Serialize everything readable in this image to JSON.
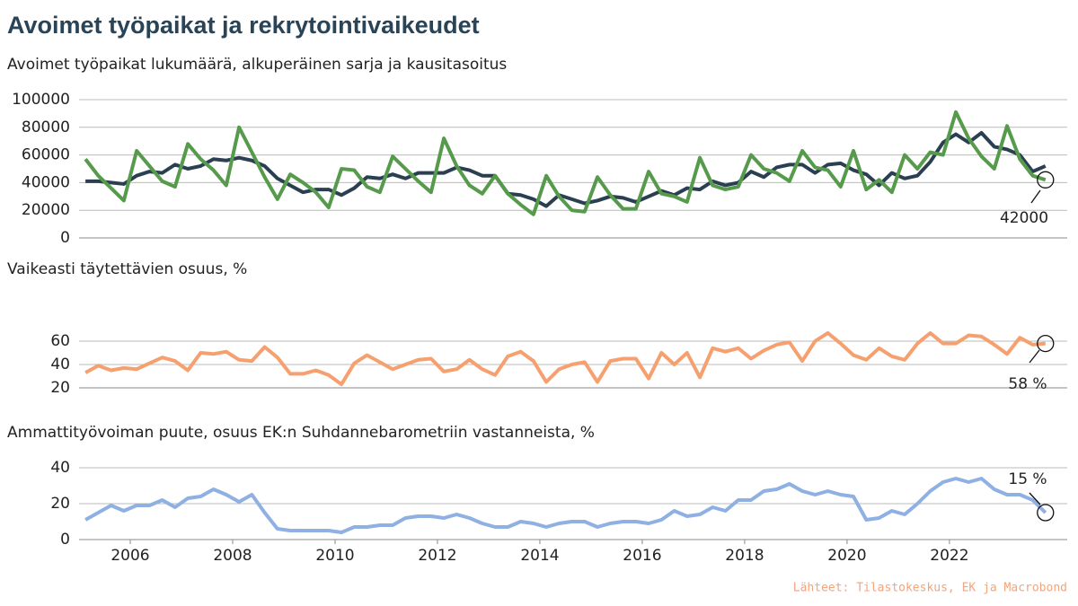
{
  "title": "Avoimet työpaikat ja rekrytointivaikeudet",
  "source": "Lähteet: Tilastokeskus, EK ja Macrobond",
  "chart_data": [
    {
      "type": "line",
      "subtitle": "Avoimet työpaikat lukumäärä, alkuperäinen sarja ja kausitasoitus",
      "x": [
        2005.125,
        2005.375,
        2005.625,
        2005.875,
        2006.125,
        2006.375,
        2006.625,
        2006.875,
        2007.125,
        2007.375,
        2007.625,
        2007.875,
        2008.125,
        2008.375,
        2008.625,
        2008.875,
        2009.125,
        2009.375,
        2009.625,
        2009.875,
        2010.125,
        2010.375,
        2010.625,
        2010.875,
        2011.125,
        2011.375,
        2011.625,
        2011.875,
        2012.125,
        2012.375,
        2012.625,
        2012.875,
        2013.125,
        2013.375,
        2013.625,
        2013.875,
        2014.125,
        2014.375,
        2014.625,
        2014.875,
        2015.125,
        2015.375,
        2015.625,
        2015.875,
        2016.125,
        2016.375,
        2016.625,
        2016.875,
        2017.125,
        2017.375,
        2017.625,
        2017.875,
        2018.125,
        2018.375,
        2018.625,
        2018.875,
        2019.125,
        2019.375,
        2019.625,
        2019.875,
        2020.125,
        2020.375,
        2020.625,
        2020.875,
        2021.125,
        2021.375,
        2021.625,
        2021.875,
        2022.125,
        2022.375,
        2022.625,
        2022.875,
        2023.125,
        2023.375,
        2023.625,
        2023.875
      ],
      "series": [
        {
          "color": "#2b3f52",
          "values": [
            41000,
            41000,
            40000,
            39000,
            45000,
            48000,
            47000,
            53000,
            50000,
            52000,
            57000,
            56000,
            58000,
            56000,
            52000,
            43000,
            38000,
            33000,
            35000,
            35000,
            31000,
            36000,
            44000,
            43000,
            46000,
            43000,
            47000,
            47000,
            47000,
            51000,
            49000,
            45000,
            45000,
            32000,
            31000,
            28000,
            23000,
            31000,
            28000,
            25000,
            27000,
            30000,
            29000,
            26000,
            30000,
            34000,
            31000,
            36000,
            35000,
            41000,
            38000,
            40000,
            48000,
            44000,
            51000,
            53000,
            53000,
            47000,
            53000,
            54000,
            49000,
            46000,
            38000,
            47000,
            43000,
            45000,
            55000,
            69000,
            75000,
            69000,
            76000,
            66000,
            64000,
            60000,
            48000,
            52000
          ]
        },
        {
          "color": "#569a4b",
          "values": [
            57000,
            45000,
            36000,
            27000,
            63000,
            52000,
            41000,
            37000,
            68000,
            57000,
            49000,
            38000,
            80000,
            62000,
            44000,
            28000,
            46000,
            40000,
            33000,
            22000,
            50000,
            49000,
            37000,
            33000,
            59000,
            50000,
            41000,
            33000,
            72000,
            52000,
            38000,
            32000,
            45000,
            32000,
            24000,
            17000,
            45000,
            30000,
            20000,
            19000,
            44000,
            31000,
            21000,
            21000,
            48000,
            32000,
            30000,
            26000,
            58000,
            38000,
            35000,
            37000,
            60000,
            50000,
            47000,
            41000,
            63000,
            51000,
            49000,
            37000,
            63000,
            35000,
            42000,
            33000,
            60000,
            50000,
            62000,
            60000,
            91000,
            72000,
            59000,
            50000,
            81000,
            57000,
            45000,
            42000
          ]
        }
      ],
      "annotation": "42000",
      "xlim": [
        2005,
        2024.3
      ],
      "ylim": [
        0,
        100000
      ],
      "yticks": [
        0,
        20000,
        40000,
        60000,
        80000,
        100000
      ]
    },
    {
      "type": "line",
      "subtitle": "Vaikeasti täytettävien osuus, %",
      "x": [
        2005.125,
        2005.375,
        2005.625,
        2005.875,
        2006.125,
        2006.375,
        2006.625,
        2006.875,
        2007.125,
        2007.375,
        2007.625,
        2007.875,
        2008.125,
        2008.375,
        2008.625,
        2008.875,
        2009.125,
        2009.375,
        2009.625,
        2009.875,
        2010.125,
        2010.375,
        2010.625,
        2010.875,
        2011.125,
        2011.375,
        2011.625,
        2011.875,
        2012.125,
        2012.375,
        2012.625,
        2012.875,
        2013.125,
        2013.375,
        2013.625,
        2013.875,
        2014.125,
        2014.375,
        2014.625,
        2014.875,
        2015.125,
        2015.375,
        2015.625,
        2015.875,
        2016.125,
        2016.375,
        2016.625,
        2016.875,
        2017.125,
        2017.375,
        2017.625,
        2017.875,
        2018.125,
        2018.375,
        2018.625,
        2018.875,
        2019.125,
        2019.375,
        2019.625,
        2019.875,
        2020.125,
        2020.375,
        2020.625,
        2020.875,
        2021.125,
        2021.375,
        2021.625,
        2021.875,
        2022.125,
        2022.375,
        2022.625,
        2022.875,
        2023.125,
        2023.375,
        2023.625,
        2023.875
      ],
      "series": [
        {
          "color": "#f5a06e",
          "values": [
            33,
            39,
            35,
            37,
            36,
            41,
            46,
            43,
            35,
            50,
            49,
            51,
            44,
            43,
            55,
            46,
            32,
            32,
            35,
            31,
            23,
            41,
            48,
            42,
            36,
            40,
            44,
            45,
            34,
            36,
            44,
            36,
            31,
            47,
            51,
            43,
            25,
            36,
            40,
            42,
            25,
            43,
            45,
            45,
            28,
            50,
            40,
            50,
            29,
            54,
            51,
            54,
            45,
            52,
            57,
            59,
            43,
            60,
            67,
            58,
            48,
            44,
            54,
            47,
            44,
            58,
            67,
            58,
            58,
            65,
            64,
            57,
            49,
            63,
            57,
            58
          ]
        }
      ],
      "annotation": "58 %",
      "xlim": [
        2005,
        2024.3
      ],
      "ylim": [
        20,
        70
      ],
      "yticks": [
        20,
        40,
        60
      ]
    },
    {
      "type": "line",
      "subtitle": "Ammattityövoiman puute, osuus EK:n Suhdannebarometriin vastanneista, %",
      "x": [
        2005.125,
        2005.375,
        2005.625,
        2005.875,
        2006.125,
        2006.375,
        2006.625,
        2006.875,
        2007.125,
        2007.375,
        2007.625,
        2007.875,
        2008.125,
        2008.375,
        2008.625,
        2008.875,
        2009.125,
        2009.375,
        2009.625,
        2009.875,
        2010.125,
        2010.375,
        2010.625,
        2010.875,
        2011.125,
        2011.375,
        2011.625,
        2011.875,
        2012.125,
        2012.375,
        2012.625,
        2012.875,
        2013.125,
        2013.375,
        2013.625,
        2013.875,
        2014.125,
        2014.375,
        2014.625,
        2014.875,
        2015.125,
        2015.375,
        2015.625,
        2015.875,
        2016.125,
        2016.375,
        2016.625,
        2016.875,
        2017.125,
        2017.375,
        2017.625,
        2017.875,
        2018.125,
        2018.375,
        2018.625,
        2018.875,
        2019.125,
        2019.375,
        2019.625,
        2019.875,
        2020.125,
        2020.375,
        2020.625,
        2020.875,
        2021.125,
        2021.375,
        2021.625,
        2021.875,
        2022.125,
        2022.375,
        2022.625,
        2022.875,
        2023.125,
        2023.375,
        2023.625,
        2023.875
      ],
      "series": [
        {
          "color": "#8fb0e3",
          "values": [
            11,
            15,
            19,
            16,
            19,
            19,
            22,
            18,
            23,
            24,
            28,
            25,
            21,
            25,
            15,
            6,
            5,
            5,
            5,
            5,
            4,
            7,
            7,
            8,
            8,
            12,
            13,
            13,
            12,
            14,
            12,
            9,
            7,
            7,
            10,
            9,
            7,
            9,
            10,
            10,
            7,
            9,
            10,
            10,
            9,
            11,
            16,
            13,
            14,
            18,
            16,
            22,
            22,
            27,
            28,
            31,
            27,
            25,
            27,
            25,
            24,
            11,
            12,
            16,
            14,
            20,
            27,
            32,
            34,
            32,
            34,
            28,
            25,
            25,
            22,
            15
          ]
        }
      ],
      "annotation": "15 %",
      "xlim": [
        2005,
        2024.3
      ],
      "ylim": [
        0,
        40
      ],
      "yticks": [
        0,
        20,
        40
      ],
      "xticks": [
        2006,
        2008,
        2010,
        2012,
        2014,
        2016,
        2018,
        2020,
        2022
      ]
    }
  ]
}
